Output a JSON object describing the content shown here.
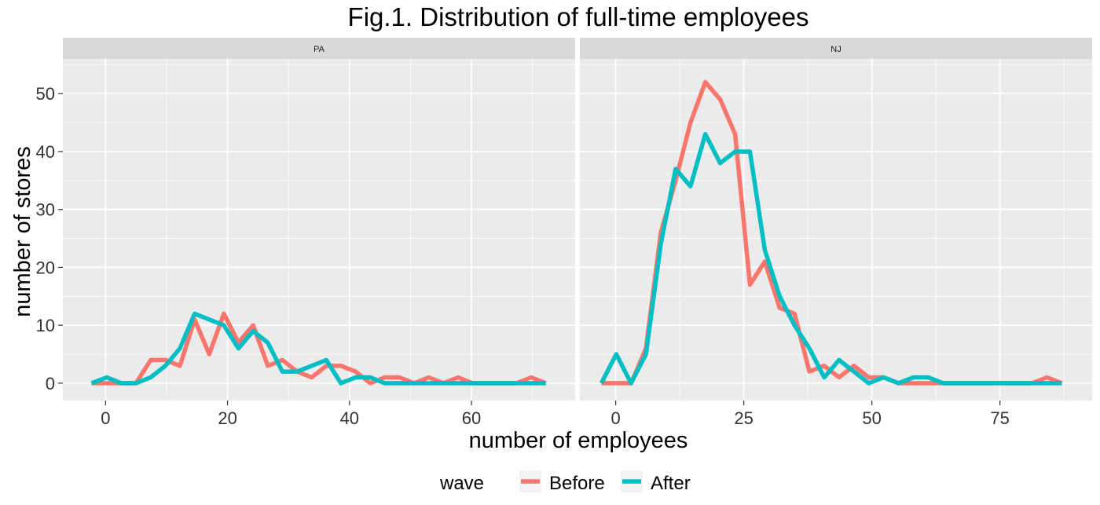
{
  "chart_data": {
    "type": "line",
    "title": "Fig.1. Distribution of full-time employees",
    "xlabel": "number of employees",
    "ylabel": "number of stores",
    "ylim": [
      -3,
      56
    ],
    "yticks": [
      0,
      10,
      20,
      30,
      40,
      50
    ],
    "grid": true,
    "legend": {
      "position": "bottom",
      "title": "wave",
      "entries": [
        {
          "name": "Before",
          "color": "#F8766D"
        },
        {
          "name": "After",
          "color": "#00BFC4"
        }
      ]
    },
    "panels": [
      {
        "label": "PA",
        "xlim": [
          -7,
          77
        ],
        "xticks": [
          0,
          20,
          40,
          60
        ],
        "series": [
          {
            "name": "Before",
            "color": "#F8766D",
            "x": [
              -2.3,
              0.2,
              2.6,
              5.0,
              7.4,
              9.8,
              12.2,
              14.6,
              17.0,
              19.4,
              21.8,
              24.2,
              26.6,
              29.0,
              31.4,
              33.8,
              36.2,
              38.6,
              41.0,
              43.4,
              45.8,
              48.2,
              50.6,
              53.0,
              55.4,
              57.8,
              60.2,
              62.6,
              65.0,
              67.4,
              69.8,
              72.2
            ],
            "y": [
              0,
              0,
              0,
              0,
              4,
              4,
              3,
              11,
              5,
              12,
              7,
              10,
              3,
              4,
              2,
              1,
              3,
              3,
              2,
              0,
              1,
              1,
              0,
              1,
              0,
              1,
              0,
              0,
              0,
              0,
              1,
              0
            ]
          },
          {
            "name": "After",
            "color": "#00BFC4",
            "x": [
              -2.3,
              0.2,
              2.6,
              5.0,
              7.4,
              9.8,
              12.2,
              14.6,
              17.0,
              19.4,
              21.8,
              24.2,
              26.6,
              29.0,
              31.4,
              33.8,
              36.2,
              38.6,
              41.0,
              43.4,
              45.8,
              48.2,
              50.6,
              53.0,
              55.4,
              57.8,
              60.2,
              62.6,
              65.0,
              67.4,
              69.8,
              72.2
            ],
            "y": [
              0,
              1,
              0,
              0,
              1,
              3,
              6,
              12,
              11,
              10,
              6,
              9,
              7,
              2,
              2,
              3,
              4,
              0,
              1,
              1,
              0,
              0,
              0,
              0,
              0,
              0,
              0,
              0,
              0,
              0,
              0,
              0
            ]
          }
        ]
      },
      {
        "label": "NJ",
        "xlim": [
          -7,
          93
        ],
        "xticks": [
          0,
          25,
          50,
          75
        ],
        "series": [
          {
            "name": "Before",
            "color": "#F8766D",
            "x": [
              -2.8,
              0.1,
              3.0,
              5.9,
              8.8,
              11.7,
              14.6,
              17.5,
              20.4,
              23.3,
              26.2,
              29.1,
              32.0,
              34.9,
              37.8,
              40.7,
              43.6,
              46.5,
              49.4,
              52.3,
              55.2,
              58.1,
              61.0,
              63.9,
              66.8,
              69.7,
              72.6,
              75.5,
              78.4,
              81.3,
              84.2,
              87.1
            ],
            "y": [
              0,
              0,
              0,
              6,
              26,
              35,
              45,
              52,
              49,
              43,
              17,
              21,
              13,
              12,
              2,
              3,
              1,
              3,
              1,
              1,
              0,
              0,
              0,
              0,
              0,
              0,
              0,
              0,
              0,
              0,
              1,
              0
            ]
          },
          {
            "name": "After",
            "color": "#00BFC4",
            "x": [
              -2.8,
              0.1,
              3.0,
              5.9,
              8.8,
              11.7,
              14.6,
              17.5,
              20.4,
              23.3,
              26.2,
              29.1,
              32.0,
              34.9,
              37.8,
              40.7,
              43.6,
              46.5,
              49.4,
              52.3,
              55.2,
              58.1,
              61.0,
              63.9,
              66.8,
              69.7,
              72.6,
              75.5,
              78.4,
              81.3,
              84.2,
              87.1
            ],
            "y": [
              0,
              5,
              0,
              5,
              24,
              37,
              34,
              43,
              38,
              40,
              40,
              23,
              15,
              10,
              6,
              1,
              4,
              2,
              0,
              1,
              0,
              1,
              1,
              0,
              0,
              0,
              0,
              0,
              0,
              0,
              0,
              0
            ]
          }
        ]
      }
    ]
  }
}
